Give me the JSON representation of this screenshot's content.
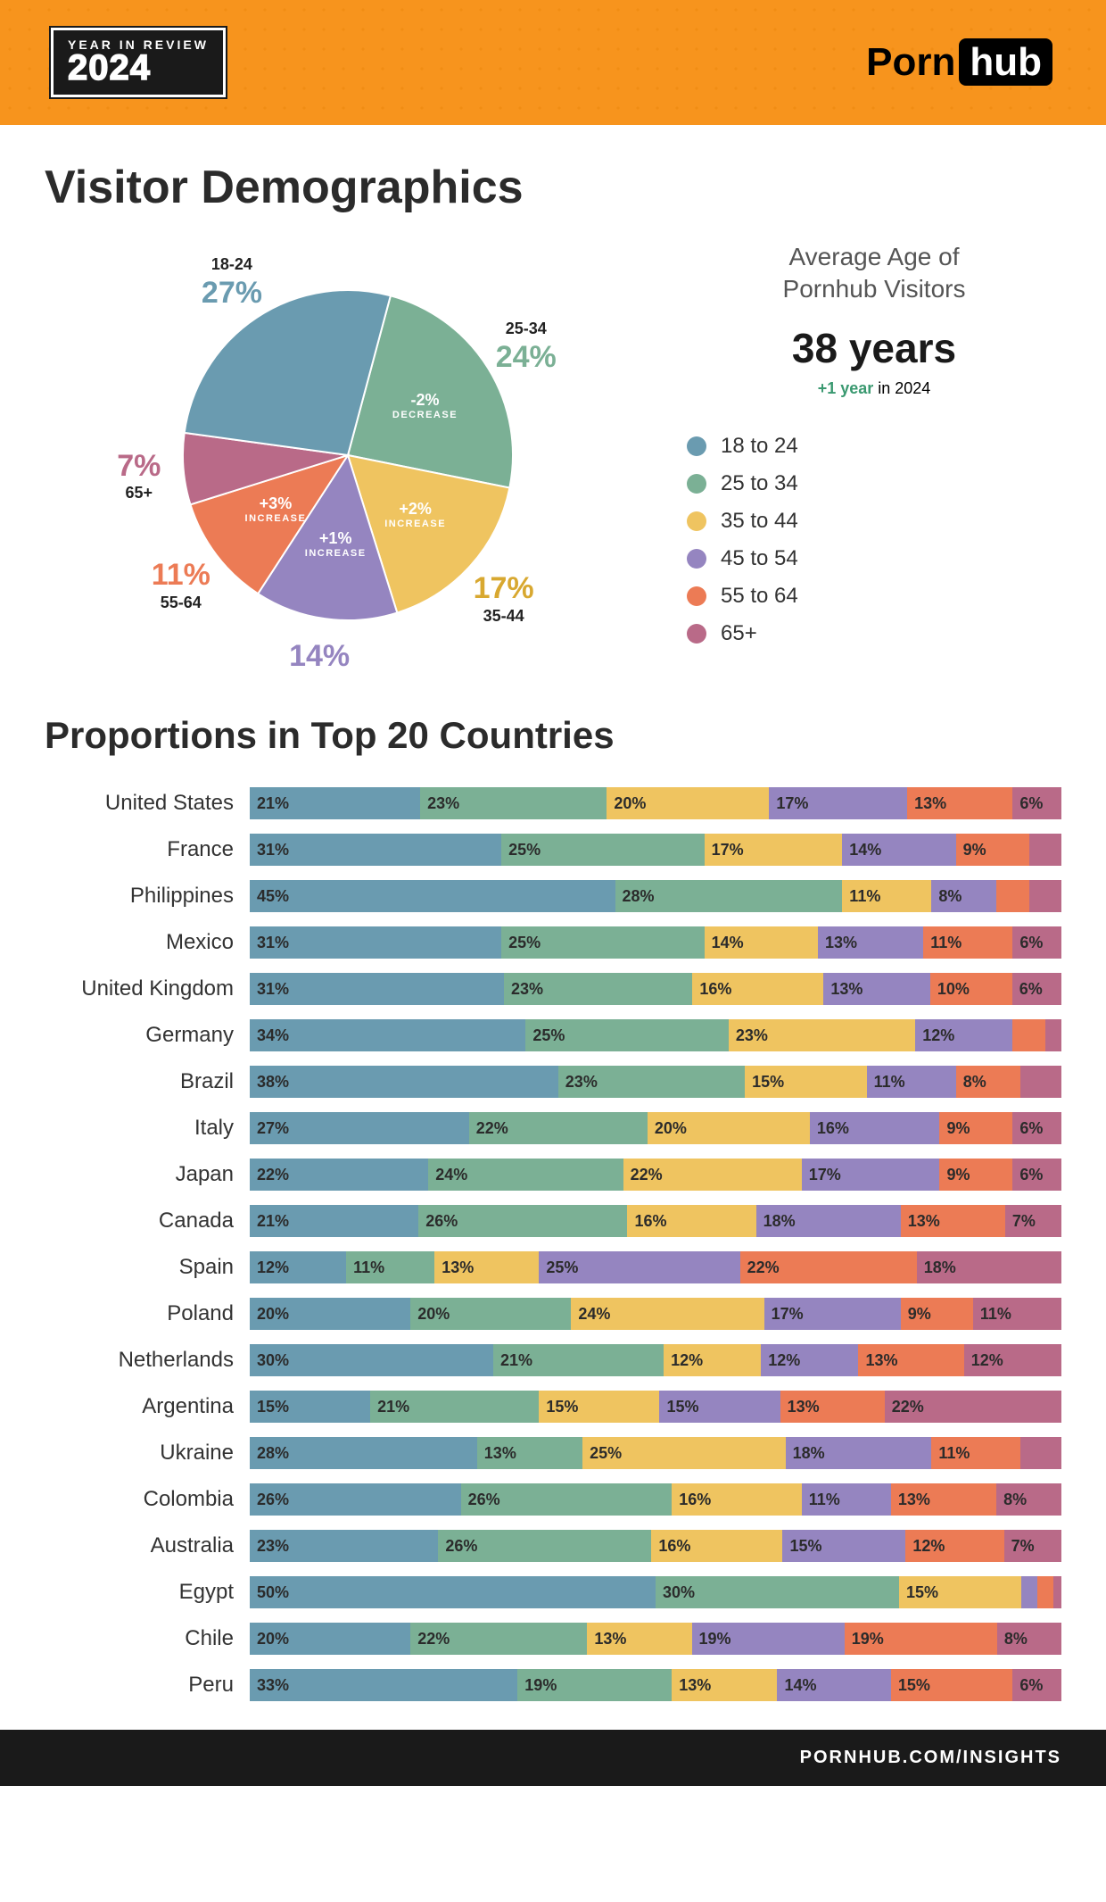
{
  "header": {
    "badge_top": "YEAR IN REVIEW",
    "badge_year": "2024",
    "brand_left": "Porn",
    "brand_right": "hub"
  },
  "colors": {
    "c18_24": "#6a9bb0",
    "c25_34": "#7bb095",
    "c35_44": "#efc460",
    "c45_54": "#9585c0",
    "c55_64": "#ec7b55",
    "c65p": "#b96a88",
    "orange_bg": "#f7941d",
    "text_dark": "#2b2b2b"
  },
  "title": "Visitor Demographics",
  "pie": {
    "type": "pie",
    "radius": 185,
    "start_angle_deg": -75,
    "slices": [
      {
        "key": "25-34",
        "value": 24,
        "color": "#7bb095",
        "delta": "-2%",
        "word": "DECREASE",
        "label_color": "#7bb095"
      },
      {
        "key": "35-44",
        "value": 17,
        "color": "#efc460",
        "delta": "+2%",
        "word": "INCREASE",
        "label_color": "#d8a830"
      },
      {
        "key": "45-54",
        "value": 14,
        "color": "#9585c0",
        "delta": "+1%",
        "word": "INCREASE",
        "label_color": "#9585c0",
        "no_age_label": true
      },
      {
        "key": "55-64",
        "value": 11,
        "color": "#ec7b55",
        "delta": "+3%",
        "word": "INCREASE",
        "label_color": "#ec7b55"
      },
      {
        "key": "65+",
        "value": 7,
        "color": "#b96a88",
        "delta": "",
        "word": "",
        "label_color": "#b96a88"
      },
      {
        "key": "18-24",
        "value": 27,
        "color": "#6a9bb0",
        "delta": "",
        "word": "",
        "label_color": "#6a9bb0"
      }
    ]
  },
  "avg": {
    "title_l1": "Average Age of",
    "title_l2": "Pornhub Visitors",
    "years": "38 years",
    "delta": "+1 year",
    "in_year": " in 2024"
  },
  "legend": [
    {
      "label": "18 to 24",
      "color": "#6a9bb0"
    },
    {
      "label": "25 to 34",
      "color": "#7bb095"
    },
    {
      "label": "35 to 44",
      "color": "#efc460"
    },
    {
      "label": "45 to 54",
      "color": "#9585c0"
    },
    {
      "label": "55 to 64",
      "color": "#ec7b55"
    },
    {
      "label": "65+",
      "color": "#b96a88"
    }
  ],
  "subtitle": "Proportions in Top 20 Countries",
  "bar_colors": [
    "#6a9bb0",
    "#7bb095",
    "#efc460",
    "#9585c0",
    "#ec7b55",
    "#b96a88"
  ],
  "label_threshold_pct": 6,
  "countries": [
    {
      "name": "United States",
      "v": [
        21,
        23,
        20,
        17,
        13,
        6
      ]
    },
    {
      "name": "France",
      "v": [
        31,
        25,
        17,
        14,
        9,
        4
      ]
    },
    {
      "name": "Philippines",
      "v": [
        45,
        28,
        11,
        8,
        4,
        4
      ]
    },
    {
      "name": "Mexico",
      "v": [
        31,
        25,
        14,
        13,
        11,
        6
      ]
    },
    {
      "name": "United Kingdom",
      "v": [
        31,
        23,
        16,
        13,
        10,
        6
      ]
    },
    {
      "name": "Germany",
      "v": [
        34,
        25,
        23,
        12,
        4,
        2
      ]
    },
    {
      "name": "Brazil",
      "v": [
        38,
        23,
        15,
        11,
        8,
        5
      ]
    },
    {
      "name": "Italy",
      "v": [
        27,
        22,
        20,
        16,
        9,
        6
      ]
    },
    {
      "name": "Japan",
      "v": [
        22,
        24,
        22,
        17,
        9,
        6
      ]
    },
    {
      "name": "Canada",
      "v": [
        21,
        26,
        16,
        18,
        13,
        7
      ]
    },
    {
      "name": "Spain",
      "v": [
        12,
        11,
        13,
        25,
        22,
        18
      ]
    },
    {
      "name": "Poland",
      "v": [
        20,
        20,
        24,
        17,
        9,
        11
      ]
    },
    {
      "name": "Netherlands",
      "v": [
        30,
        21,
        12,
        12,
        13,
        12
      ]
    },
    {
      "name": "Argentina",
      "v": [
        15,
        21,
        15,
        15,
        13,
        22
      ]
    },
    {
      "name": "Ukraine",
      "v": [
        28,
        13,
        25,
        18,
        11,
        5
      ]
    },
    {
      "name": "Colombia",
      "v": [
        26,
        26,
        16,
        11,
        13,
        8
      ]
    },
    {
      "name": "Australia",
      "v": [
        23,
        26,
        16,
        15,
        12,
        7
      ]
    },
    {
      "name": "Egypt",
      "v": [
        50,
        30,
        15,
        2,
        2,
        1
      ]
    },
    {
      "name": "Chile",
      "v": [
        20,
        22,
        13,
        19,
        19,
        8
      ]
    },
    {
      "name": "Peru",
      "v": [
        33,
        19,
        13,
        14,
        15,
        6
      ]
    }
  ],
  "footer": "PORNHUB.COM/INSIGHTS"
}
